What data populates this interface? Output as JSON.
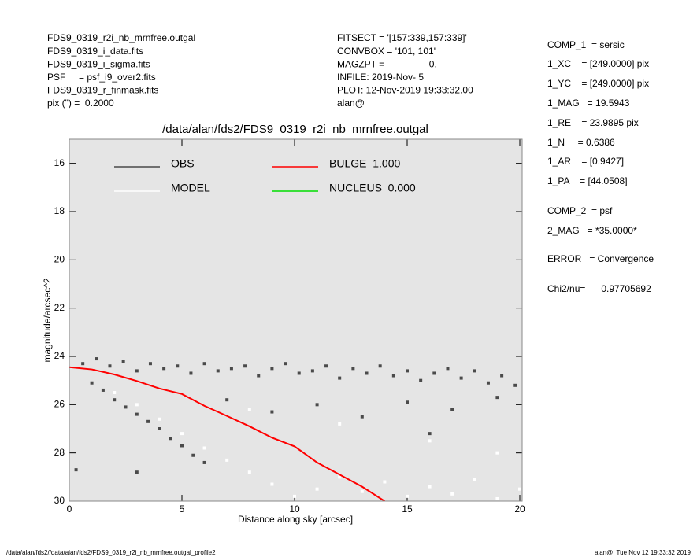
{
  "header": {
    "left": [
      "FDS9_0319_r2i_nb_mrnfree.outgal",
      "FDS9_0319_i_data.fits",
      "FDS9_0319_i_sigma.fits",
      "PSF     = psf_i9_over2.fits",
      "FDS9_0319_r_finmask.fits",
      "pix (\") =  0.2000"
    ],
    "middle": [
      "FITSECT = '[157:339,157:339]'",
      "CONVBOX = '101, 101'",
      "MAGZPT =                 0.",
      "INFILE: 2019-Nov- 5",
      "PLOT: 12-Nov-2019 19:33:32.00",
      "alan@"
    ],
    "right": [
      "COMP_1  = sersic",
      "1_XC    = [249.0000] pix",
      "1_YC    = [249.0000] pix",
      "1_MAG   = 19.5943",
      "1_RE    = 23.9895 pix",
      "1_N     = 0.6386",
      "1_AR    = [0.9427]",
      "1_PA    = [44.0508]",
      "COMP_2  = psf",
      "2_MAG   = *35.0000*",
      "ERROR   = Convergence",
      "Chi2/nu=      0.97705692"
    ]
  },
  "footer": {
    "left": "/data/alan/fds2//data/alan/fds2/FDS9_0319_r2i_nb_mrnfree.outgal_profile2",
    "right": "alan@  Tue Nov 12 19:33:32 2019"
  },
  "chart_data": {
    "type": "scatter",
    "title": "/data/alan/fds2/FDS9_0319_r2i_nb_mrnfree.outgal",
    "x_label": "Distance along sky [arcsec]",
    "y_label": "magnitude/arcsec^2",
    "xlim": [
      0,
      20
    ],
    "xticks": [
      0,
      5,
      10,
      15,
      20
    ],
    "ylim": [
      15,
      30
    ],
    "yticks": [
      16,
      18,
      20,
      22,
      24,
      26,
      28,
      30
    ],
    "y_inverted": true,
    "series": [
      {
        "name": "OBS",
        "color": "#4a4a4a",
        "x": [
          0.6,
          1.2,
          1.8,
          2.4,
          3,
          3.6,
          4.2,
          4.8,
          5.4,
          6,
          6.6,
          7.2,
          7.8,
          8.4,
          9,
          9.6,
          10.2,
          10.8,
          11.4,
          12,
          12.6,
          13.2,
          13.8,
          14.4,
          15,
          15.6,
          16.2,
          16.8,
          17.4,
          18,
          18.6,
          19.2,
          19.8,
          1,
          1.5,
          2,
          2.5,
          3,
          3.5,
          4,
          4.5,
          5,
          5.5,
          6,
          7,
          9,
          11,
          13,
          15,
          17,
          19,
          3,
          0.3,
          16
        ],
        "y": [
          24.3,
          24.1,
          24.4,
          24.2,
          24.6,
          24.3,
          24.5,
          24.4,
          24.7,
          24.3,
          24.6,
          24.5,
          24.4,
          24.8,
          24.5,
          24.3,
          24.7,
          24.6,
          24.4,
          24.9,
          24.5,
          24.7,
          24.4,
          24.8,
          24.6,
          25.0,
          24.7,
          24.5,
          24.9,
          24.6,
          25.1,
          24.8,
          25.2,
          25.1,
          25.4,
          25.8,
          26.1,
          26.4,
          26.7,
          27.0,
          27.4,
          27.7,
          28.1,
          28.4,
          25.8,
          26.3,
          26.0,
          26.5,
          25.9,
          26.2,
          25.7,
          28.8,
          28.7,
          27.2
        ]
      },
      {
        "name": "MODEL",
        "color": "#ffffff",
        "x": [
          2,
          3,
          4,
          5,
          6,
          7,
          8,
          9,
          10,
          11,
          12,
          13,
          14,
          15,
          16,
          17,
          18,
          19,
          20,
          8,
          12,
          16,
          19
        ],
        "y": [
          25.5,
          26.0,
          26.6,
          27.2,
          27.8,
          28.3,
          28.8,
          29.3,
          29.8,
          29.5,
          29.0,
          29.6,
          29.2,
          29.8,
          29.4,
          29.7,
          29.1,
          29.9,
          29.5,
          26.2,
          26.8,
          27.5,
          28.0
        ]
      },
      {
        "name": "BULGE  1.000",
        "color": "#ff0000",
        "line": true,
        "x": [
          0,
          1,
          2,
          3,
          4,
          5,
          6,
          7,
          8,
          9,
          10,
          11,
          12,
          13,
          14
        ],
        "y": [
          24.45,
          24.54,
          24.75,
          25.02,
          25.33,
          25.56,
          26.05,
          26.47,
          26.9,
          27.37,
          27.73,
          28.4,
          28.9,
          29.4,
          30.0
        ]
      },
      {
        "name": "NUCLEUS  0.000",
        "color": "#00dd00",
        "line": true,
        "x": [],
        "y": []
      }
    ]
  }
}
